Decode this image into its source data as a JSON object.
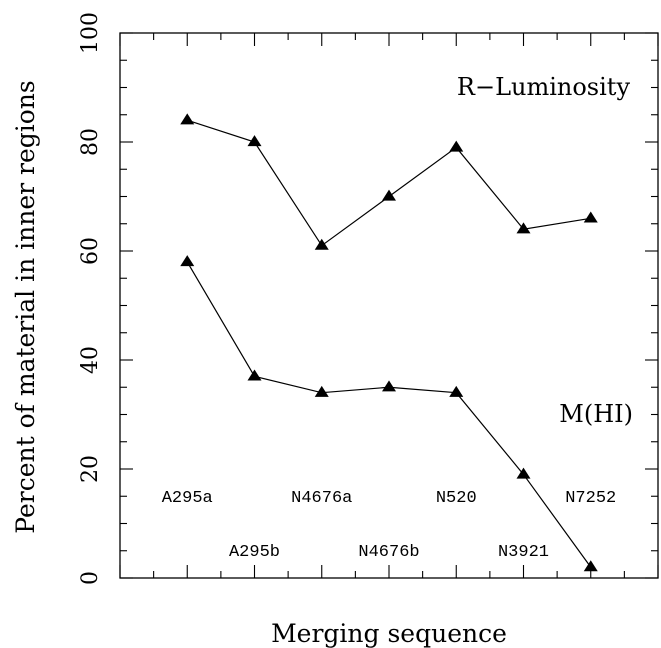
{
  "chart_data": {
    "type": "line",
    "title": "",
    "xlabel": "Merging sequence",
    "ylabel": "Percent of material in inner regions",
    "ylim": [
      0,
      100
    ],
    "yticks": [
      0,
      20,
      40,
      60,
      80,
      100
    ],
    "xlim": [
      0,
      8
    ],
    "categories": [
      "A295a",
      "A295b",
      "N4676a",
      "N4676b",
      "N520",
      "N3921",
      "N7252"
    ],
    "series": [
      {
        "name": "R−Luminosity",
        "values": [
          84,
          80,
          61,
          70,
          79,
          64,
          66
        ]
      },
      {
        "name": "M(HI)",
        "values": [
          58,
          37,
          34,
          35,
          34,
          19,
          2
        ]
      }
    ],
    "grid": false,
    "legend": "inline-labels",
    "marker": "triangle",
    "color": "#000000"
  }
}
